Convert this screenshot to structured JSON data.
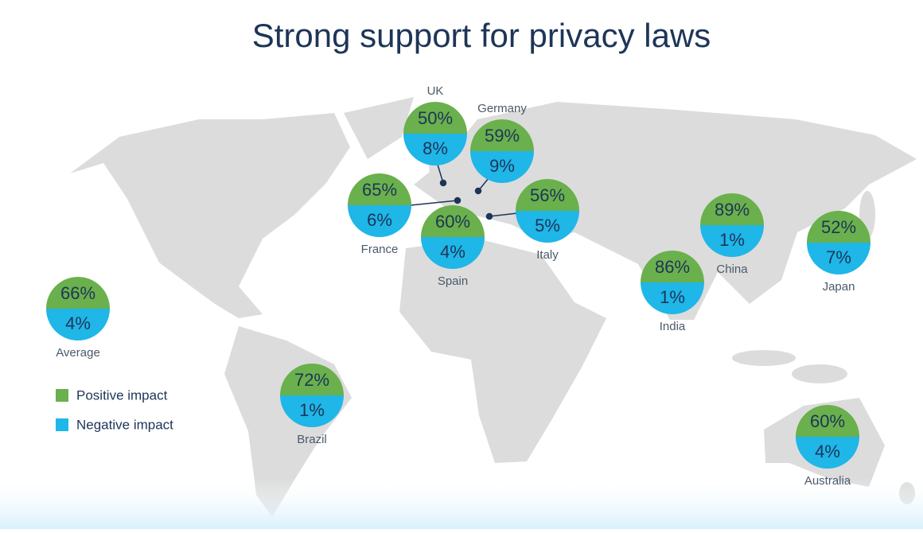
{
  "title": "Strong support for privacy laws",
  "regions": [
    {
      "name": "UK",
      "positive": "50%",
      "negative": "8%"
    },
    {
      "name": "Germany",
      "positive": "59%",
      "negative": "9%"
    },
    {
      "name": "France",
      "positive": "65%",
      "negative": "6%"
    },
    {
      "name": "Spain",
      "positive": "60%",
      "negative": "4%"
    },
    {
      "name": "Italy",
      "positive": "56%",
      "negative": "5%"
    },
    {
      "name": "India",
      "positive": "86%",
      "negative": "1%"
    },
    {
      "name": "China",
      "positive": "89%",
      "negative": "1%"
    },
    {
      "name": "Japan",
      "positive": "52%",
      "negative": "7%"
    },
    {
      "name": "Average",
      "positive": "66%",
      "negative": "4%"
    },
    {
      "name": "Brazil",
      "positive": "72%",
      "negative": "1%"
    },
    {
      "name": "Australia",
      "positive": "60%",
      "negative": "4%"
    }
  ],
  "legend": {
    "positive": "Positive impact",
    "negative": "Negative impact"
  }
}
